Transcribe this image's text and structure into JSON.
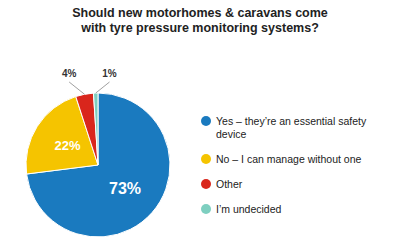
{
  "chart_data": {
    "type": "pie",
    "title": "Should new motorhomes & caravans come\nwith tyre pressure monitoring systems?",
    "categories": [
      "Yes – they’re an essential safety\ndevice",
      "No – I can manage without one",
      "Other",
      "I’m undecided"
    ],
    "values": [
      73,
      22,
      4,
      1
    ],
    "value_labels": [
      "73%",
      "22%",
      "4%",
      "1%"
    ],
    "colors": [
      "#1a7abf",
      "#f5c400",
      "#d9261c",
      "#7ecfc0"
    ],
    "data_labels": true,
    "legend": "right"
  }
}
